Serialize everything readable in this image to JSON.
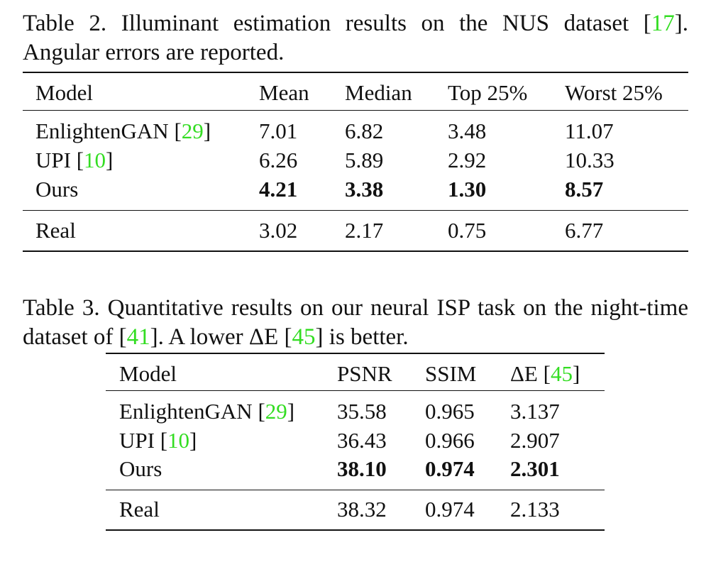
{
  "table2": {
    "caption": {
      "prefix": "Table 2. Illuminant estimation results on the NUS dataset [",
      "cite": "17",
      "suffix": "]. Angular errors are reported."
    },
    "header": [
      "Model",
      "Mean",
      "Median",
      "Top 25%",
      "Worst 25%"
    ],
    "rows": [
      {
        "model": "EnlightenGAN [",
        "cite": "29",
        "model_suffix": "]",
        "values": [
          "7.01",
          "6.82",
          "3.48",
          "11.07"
        ],
        "bold": false
      },
      {
        "model": "UPI [",
        "cite": "10",
        "model_suffix": "]",
        "values": [
          "6.26",
          "5.89",
          "2.92",
          "10.33"
        ],
        "bold": false
      },
      {
        "model": "Ours",
        "cite": "",
        "model_suffix": "",
        "values": [
          "4.21",
          "3.38",
          "1.30",
          "8.57"
        ],
        "bold": true
      },
      {
        "model": "Real",
        "cite": "",
        "model_suffix": "",
        "values": [
          "3.02",
          "2.17",
          "0.75",
          "6.77"
        ],
        "bold": false
      }
    ]
  },
  "table3": {
    "caption": {
      "prefix": "Table 3. Quantitative results on our neural ISP task on the night-time dataset of [",
      "cite1": "41",
      "middle": "]. A lower ΔE [",
      "cite2": "45",
      "suffix": "] is better."
    },
    "header": {
      "model": "Model",
      "psnr": "PSNR",
      "ssim": "SSIM",
      "de": "ΔE [",
      "de_cite": "45",
      "de_suffix": "]"
    },
    "rows": [
      {
        "model": "EnlightenGAN [",
        "cite": "29",
        "model_suffix": "]",
        "values": [
          "35.58",
          "0.965",
          "3.137"
        ],
        "bold": false
      },
      {
        "model": "UPI [",
        "cite": "10",
        "model_suffix": "]",
        "values": [
          "36.43",
          "0.966",
          "2.907"
        ],
        "bold": false
      },
      {
        "model": "Ours",
        "cite": "",
        "model_suffix": "",
        "values": [
          "38.10",
          "0.974",
          "2.301"
        ],
        "bold": true
      },
      {
        "model": "Real",
        "cite": "",
        "model_suffix": "",
        "values": [
          "38.32",
          "0.974",
          "2.133"
        ],
        "bold": false
      }
    ]
  }
}
